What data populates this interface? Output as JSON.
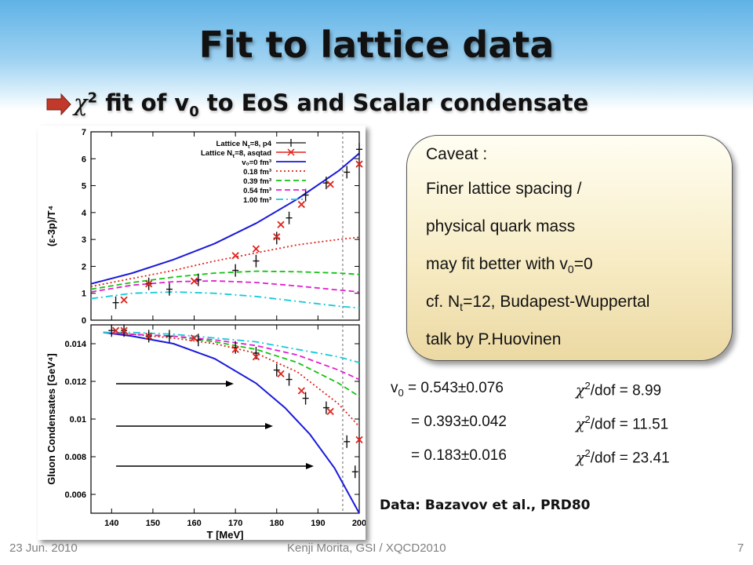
{
  "title": "Fit to lattice data",
  "subtitle": {
    "chi": "χ",
    "sup": "2",
    "text1": " fit of v",
    "sub": "0",
    "text2": " to EoS and Scalar condensate"
  },
  "caveat": {
    "heading": "Caveat :",
    "line1": "Finer lattice spacing /",
    "line2": "physical quark mass",
    "line3_a": "may fit better with v",
    "line3_sub": "0",
    "line3_b": "=0",
    "line4_a": "cf. N",
    "line4_sub": "t",
    "line4_b": "=12, Budapest-Wuppertal",
    "line5": "talk by P.Huovinen"
  },
  "fits": {
    "v0_label": "v",
    "v0_sub": "0",
    "chi": "χ",
    "chi_sup": "2",
    "dof_label": "/dof = ",
    "rows": [
      {
        "v0": " = 0.543±0.076",
        "chi2": "8.99"
      },
      {
        "v0": "= 0.393±0.042",
        "chi2": "11.51"
      },
      {
        "v0": "= 0.183±0.016",
        "chi2": "23.41"
      }
    ]
  },
  "data_source": "Data: Bazavov et al., PRD80",
  "footer": {
    "date": "23 Jun. 2010",
    "center": "Kenji Morita, GSI / XQCD2010",
    "page": "7"
  },
  "colors": {
    "accent_bullet": "#c0392b",
    "v0_0": "#1a1adb",
    "v0_018": "#e0221a",
    "v0_039": "#11c411",
    "v0_054": "#e020d0",
    "v0_100": "#18c8d8"
  },
  "chart_data": [
    {
      "type": "line",
      "ylabel": "(ε-3p)/T⁴",
      "xlim": [
        135,
        200
      ],
      "ylim": [
        0,
        7
      ],
      "x_ticks": [
        140,
        150,
        160,
        170,
        180,
        190,
        200
      ],
      "y_ticks": [
        0,
        1,
        2,
        3,
        4,
        5,
        6,
        7
      ],
      "vline_x": 196,
      "legend_position": "top-right",
      "series": [
        {
          "name": "v₀=0 fm³",
          "style": "solid",
          "color": "#1a1adb",
          "x": [
            135,
            145,
            155,
            165,
            175,
            185,
            195,
            200
          ],
          "y": [
            1.35,
            1.75,
            2.25,
            2.85,
            3.6,
            4.5,
            5.55,
            6.2
          ]
        },
        {
          "name": "0.18 fm³",
          "style": "dotted",
          "color": "#e0221a",
          "x": [
            135,
            145,
            155,
            165,
            175,
            185,
            195,
            200
          ],
          "y": [
            1.25,
            1.55,
            1.85,
            2.2,
            2.5,
            2.8,
            3.0,
            3.08
          ]
        },
        {
          "name": "0.39 fm³",
          "style": "dashed",
          "color": "#11c411",
          "x": [
            135,
            145,
            155,
            165,
            175,
            185,
            195,
            200
          ],
          "y": [
            1.15,
            1.4,
            1.6,
            1.75,
            1.82,
            1.8,
            1.75,
            1.7
          ]
        },
        {
          "name": "0.54 fm³",
          "style": "dashed",
          "color": "#e020d0",
          "x": [
            135,
            145,
            155,
            165,
            175,
            185,
            195,
            200
          ],
          "y": [
            1.05,
            1.3,
            1.43,
            1.46,
            1.4,
            1.27,
            1.12,
            1.05
          ]
        },
        {
          "name": "1.00 fm³",
          "style": "dashdot",
          "color": "#18c8d8",
          "x": [
            135,
            145,
            155,
            165,
            175,
            185,
            195,
            200
          ],
          "y": [
            0.8,
            1.0,
            1.05,
            1.0,
            0.88,
            0.7,
            0.52,
            0.45
          ]
        },
        {
          "name": "Lattice N",
          "name_sub": "τ",
          "name_tail": "=8, p4",
          "marker": "plus",
          "color": "#111111",
          "x": [
            141,
            149,
            154,
            161,
            170,
            175,
            180,
            183,
            187,
            192,
            197,
            200
          ],
          "y": [
            0.65,
            1.35,
            1.15,
            1.5,
            1.85,
            2.2,
            3.05,
            3.8,
            4.65,
            5.1,
            5.5,
            6.35
          ]
        },
        {
          "name": "Lattice N",
          "name_sub": "τ",
          "name_tail": "=8, asqtad",
          "marker": "x",
          "color": "#e0221a",
          "x": [
            143,
            149,
            160,
            170,
            175,
            180,
            181,
            186,
            193,
            200
          ],
          "y": [
            0.75,
            1.35,
            1.45,
            2.4,
            2.65,
            3.1,
            3.55,
            4.3,
            5.05,
            5.8
          ]
        }
      ]
    },
    {
      "type": "line",
      "xlabel": "T [MeV]",
      "ylabel": "Gluon Condensates [GeV⁴]",
      "xlim": [
        135,
        200
      ],
      "ylim": [
        0.005,
        0.015
      ],
      "x_ticks": [
        140,
        150,
        160,
        170,
        180,
        190,
        200
      ],
      "y_ticks": [
        0.006,
        0.008,
        0.01,
        0.012,
        0.014
      ],
      "vline_x": 196,
      "series": [
        {
          "name": "v₀=0 fm³",
          "style": "solid",
          "color": "#1a1adb",
          "x": [
            138,
            145,
            155,
            165,
            175,
            182,
            188,
            194,
            200
          ],
          "y": [
            0.0146,
            0.0144,
            0.014,
            0.0132,
            0.0119,
            0.0106,
            0.0092,
            0.0074,
            0.005
          ]
        },
        {
          "name": "0.18 fm³",
          "style": "dotted",
          "color": "#e0221a",
          "x": [
            138,
            145,
            155,
            165,
            175,
            185,
            195,
            200
          ],
          "y": [
            0.0146,
            0.0145,
            0.0143,
            0.014,
            0.0135,
            0.0125,
            0.0108,
            0.0096
          ]
        },
        {
          "name": "0.39 fm³",
          "style": "dashed",
          "color": "#11c411",
          "x": [
            138,
            145,
            155,
            165,
            175,
            185,
            195,
            200
          ],
          "y": [
            0.0146,
            0.0145,
            0.0144,
            0.0141,
            0.0137,
            0.013,
            0.0119,
            0.0112
          ]
        },
        {
          "name": "0.54 fm³",
          "style": "dashed",
          "color": "#e020d0",
          "x": [
            138,
            145,
            155,
            165,
            175,
            185,
            195,
            200
          ],
          "y": [
            0.0146,
            0.0145,
            0.0144,
            0.0142,
            0.0139,
            0.0134,
            0.0126,
            0.0121
          ]
        },
        {
          "name": "1.00 fm³",
          "style": "dashdot",
          "color": "#18c8d8",
          "x": [
            138,
            145,
            155,
            165,
            175,
            185,
            195,
            200
          ],
          "y": [
            0.0146,
            0.0146,
            0.0145,
            0.0143,
            0.0141,
            0.0137,
            0.0133,
            0.013
          ]
        },
        {
          "name": "Lattice N",
          "name_sub": "τ",
          "name_tail": "=8, p4",
          "marker": "plus",
          "color": "#111111",
          "x": [
            140,
            143,
            149,
            154,
            161,
            170,
            175,
            180,
            183,
            187,
            192,
            197,
            199
          ],
          "y": [
            0.0147,
            0.0147,
            0.0144,
            0.0144,
            0.0142,
            0.0138,
            0.0135,
            0.0126,
            0.0121,
            0.0111,
            0.0106,
            0.0088,
            0.0072
          ]
        },
        {
          "name": "Lattice N",
          "name_sub": "τ",
          "name_tail": "=8, asqtad",
          "marker": "x",
          "color": "#e0221a",
          "x": [
            141,
            143,
            149,
            160,
            170,
            175,
            181,
            186,
            193,
            200
          ],
          "y": [
            0.0147,
            0.0147,
            0.0144,
            0.0143,
            0.0137,
            0.0133,
            0.0124,
            0.0115,
            0.0104,
            0.0089
          ]
        }
      ]
    }
  ]
}
